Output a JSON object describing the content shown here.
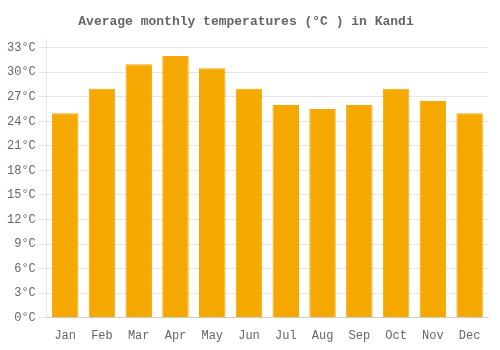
{
  "chart_data": {
    "type": "bar",
    "title": "Average monthly temperatures (°C ) in Kandi",
    "categories": [
      "Jan",
      "Feb",
      "Mar",
      "Apr",
      "May",
      "Jun",
      "Jul",
      "Aug",
      "Sep",
      "Oct",
      "Nov",
      "Dec"
    ],
    "values": [
      25.0,
      28.0,
      31.0,
      32.0,
      30.5,
      28.0,
      26.0,
      25.5,
      26.0,
      28.0,
      26.5,
      25.0
    ],
    "color": "#F5A800",
    "ylim": [
      0,
      34
    ],
    "yticks": [
      {
        "value": 0,
        "label": "0°C"
      },
      {
        "value": 3,
        "label": "3°C"
      },
      {
        "value": 6,
        "label": "6°C"
      },
      {
        "value": 9,
        "label": "9°C"
      },
      {
        "value": 12,
        "label": "12°C"
      },
      {
        "value": 15,
        "label": "15°C"
      },
      {
        "value": 18,
        "label": "18°C"
      },
      {
        "value": 21,
        "label": "21°C"
      },
      {
        "value": 24,
        "label": "24°C"
      },
      {
        "value": 27,
        "label": "27°C"
      },
      {
        "value": 30,
        "label": "30°C"
      },
      {
        "value": 33,
        "label": "33°C"
      }
    ],
    "grid": true
  }
}
